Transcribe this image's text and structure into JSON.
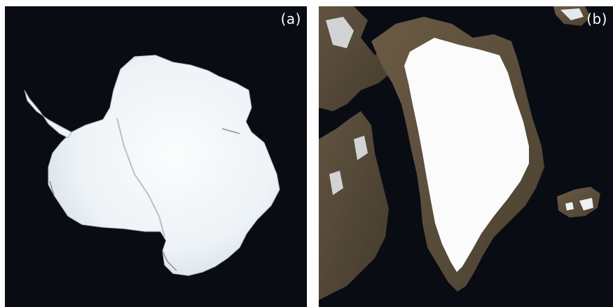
{
  "panels": [
    {
      "label": "(a)"
    },
    {
      "label": "(b)"
    }
  ],
  "colors": {
    "background": "#0a0c14",
    "ice": "#f4f6f8",
    "rock": "#5a4a38",
    "label": "#ffffff"
  }
}
